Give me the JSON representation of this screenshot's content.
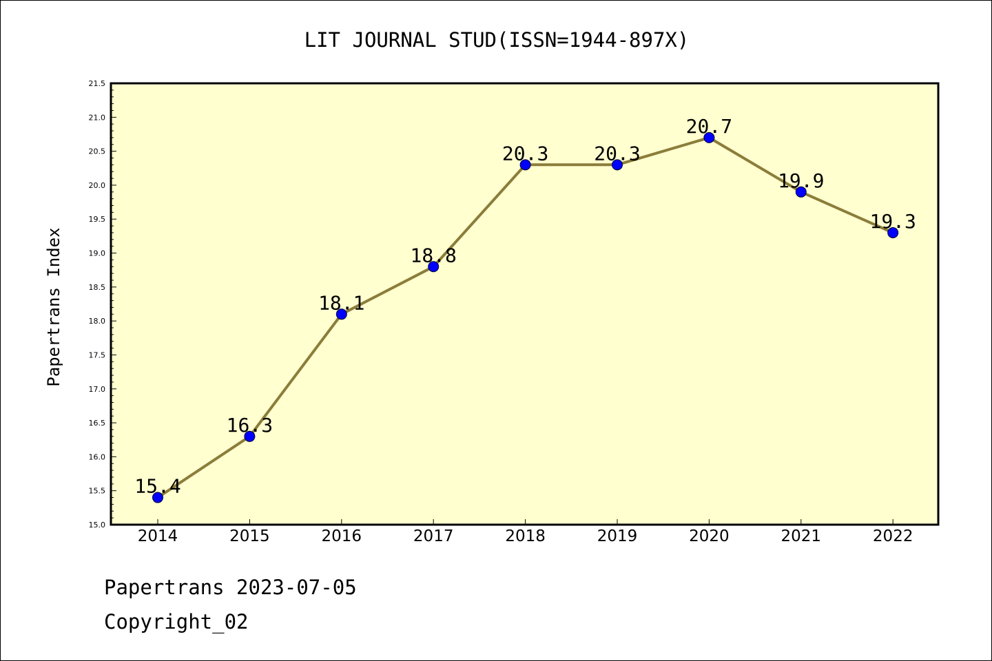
{
  "chart_data": {
    "type": "line",
    "title": "LIT JOURNAL STUD(ISSN=1944-897X)",
    "xlabel": "",
    "ylabel": "Papertrans Index",
    "x": [
      "2014",
      "2015",
      "2016",
      "2017",
      "2018",
      "2019",
      "2020",
      "2021",
      "2022"
    ],
    "series": [
      {
        "values": [
          15.4,
          16.3,
          18.1,
          18.8,
          20.3,
          20.3,
          20.7,
          19.9,
          19.3
        ]
      }
    ],
    "data_labels": [
      "15.4",
      "16.3",
      "18.1",
      "18.8",
      "20.3",
      "20.3",
      "20.7",
      "19.9",
      "19.3"
    ],
    "ylim": [
      15.0,
      21.5
    ],
    "yticks": [
      "15.0",
      "15.5",
      "16.0",
      "16.5",
      "17.0",
      "17.5",
      "18.0",
      "18.5",
      "19.0",
      "19.5",
      "20.0",
      "20.5",
      "21.0",
      "21.5"
    ],
    "grid": false,
    "legend": "none",
    "colors": {
      "line": "#8b7d3a",
      "marker": "#0000ff",
      "plot_background": "#ffffd0",
      "axis": "#000000"
    }
  },
  "footer": {
    "line1": "Papertrans 2023-07-05",
    "line2": "Copyright_02"
  }
}
